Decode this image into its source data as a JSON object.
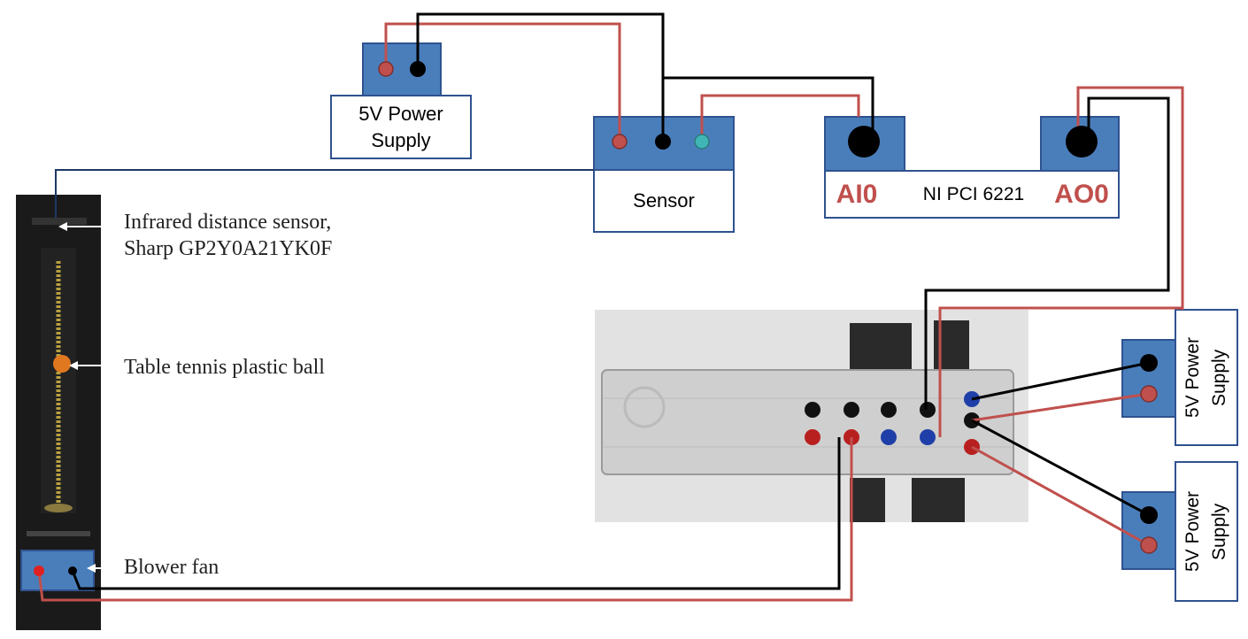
{
  "supply_top": {
    "line1": "5V Power",
    "line2": "Supply"
  },
  "sensor": {
    "label": "Sensor"
  },
  "daq": {
    "ai_label": "AI0",
    "card_label": "NI PCI 6221",
    "ao_label": "AO0"
  },
  "annotations": {
    "sensor_line1": "Infrared distance sensor,",
    "sensor_line2": "Sharp GP2Y0A21YK0F",
    "ball": "Table tennis plastic ball",
    "fan": "Blower fan"
  },
  "supply_right_1": {
    "line1": "5V Power",
    "line2": "Supply"
  },
  "supply_right_2": {
    "line1": "5V Power",
    "line2": "Supply"
  },
  "colors": {
    "box_blue": "#4a7ebb",
    "box_border": "#2f528f",
    "wire_red": "#c0504d",
    "wire_black": "#000000",
    "terminal_red": "#c0504d",
    "terminal_cyan": "#40b5b5",
    "label_red": "#c0504d"
  }
}
